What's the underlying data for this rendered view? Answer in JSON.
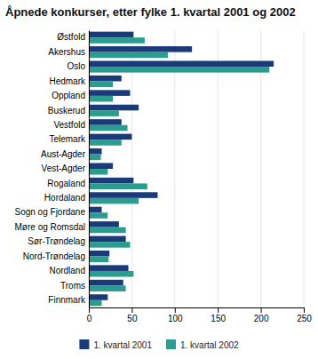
{
  "chart_data": {
    "type": "bar",
    "orientation": "horizontal",
    "title": "Åpnede konkurser, etter fylke 1. kvartal 2001 og 2002",
    "categories": [
      "Østfold",
      "Akershus",
      "Oslo",
      "Hedmark",
      "Oppland",
      "Buskerud",
      "Vestfold",
      "Telemark",
      "Aust-Agder",
      "Vest-Agder",
      "Rogaland",
      "Hordaland",
      "Sogn og Fjordane",
      "Møre og Romsdal",
      "Sør-Trøndelag",
      "Nord-Trøndelag",
      "Nordland",
      "Troms",
      "Finnmark"
    ],
    "series": [
      {
        "name": "1. kvartal 2001",
        "color": "#1a3a7a",
        "values": [
          52,
          120,
          215,
          38,
          48,
          58,
          38,
          50,
          15,
          28,
          52,
          80,
          15,
          35,
          43,
          24,
          46,
          40,
          22
        ]
      },
      {
        "name": "1. kvartal 2002",
        "color": "#2a9d8f",
        "values": [
          65,
          92,
          210,
          28,
          28,
          35,
          45,
          38,
          14,
          22,
          68,
          58,
          22,
          43,
          48,
          23,
          52,
          43,
          15
        ]
      }
    ],
    "xlim": [
      0,
      250
    ],
    "xticks": [
      0,
      50,
      100,
      150,
      200,
      250
    ],
    "grid": true,
    "legend": "bottom"
  }
}
